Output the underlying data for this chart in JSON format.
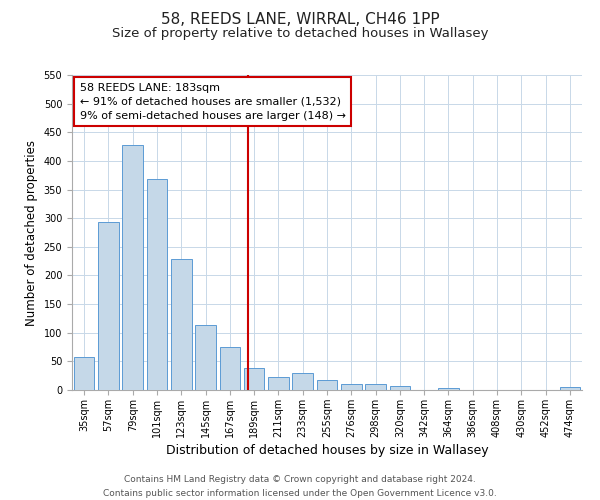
{
  "title": "58, REEDS LANE, WIRRAL, CH46 1PP",
  "subtitle": "Size of property relative to detached houses in Wallasey",
  "xlabel": "Distribution of detached houses by size in Wallasey",
  "ylabel": "Number of detached properties",
  "bar_labels": [
    "35sqm",
    "57sqm",
    "79sqm",
    "101sqm",
    "123sqm",
    "145sqm",
    "167sqm",
    "189sqm",
    "211sqm",
    "233sqm",
    "255sqm",
    "276sqm",
    "298sqm",
    "320sqm",
    "342sqm",
    "364sqm",
    "386sqm",
    "408sqm",
    "430sqm",
    "452sqm",
    "474sqm"
  ],
  "bar_values": [
    57,
    293,
    428,
    368,
    228,
    113,
    75,
    38,
    22,
    29,
    17,
    11,
    10,
    7,
    0,
    3,
    0,
    0,
    0,
    0,
    5
  ],
  "bar_color": "#c5d8e8",
  "bar_edge_color": "#5b9bd5",
  "annotation_box_text": "58 REEDS LANE: 183sqm\n← 91% of detached houses are smaller (1,532)\n9% of semi-detached houses are larger (148) →",
  "vline_color": "#cc0000",
  "box_edge_color": "#cc0000",
  "ylim": [
    0,
    550
  ],
  "yticks": [
    0,
    50,
    100,
    150,
    200,
    250,
    300,
    350,
    400,
    450,
    500,
    550
  ],
  "footnote": "Contains HM Land Registry data © Crown copyright and database right 2024.\nContains public sector information licensed under the Open Government Licence v3.0.",
  "bg_color": "#ffffff",
  "grid_color": "#c8d8e8",
  "title_fontsize": 11,
  "subtitle_fontsize": 9.5,
  "xlabel_fontsize": 9,
  "ylabel_fontsize": 8.5,
  "tick_fontsize": 7,
  "annotation_fontsize": 8,
  "footnote_fontsize": 6.5,
  "vline_x_pos": 6.727
}
